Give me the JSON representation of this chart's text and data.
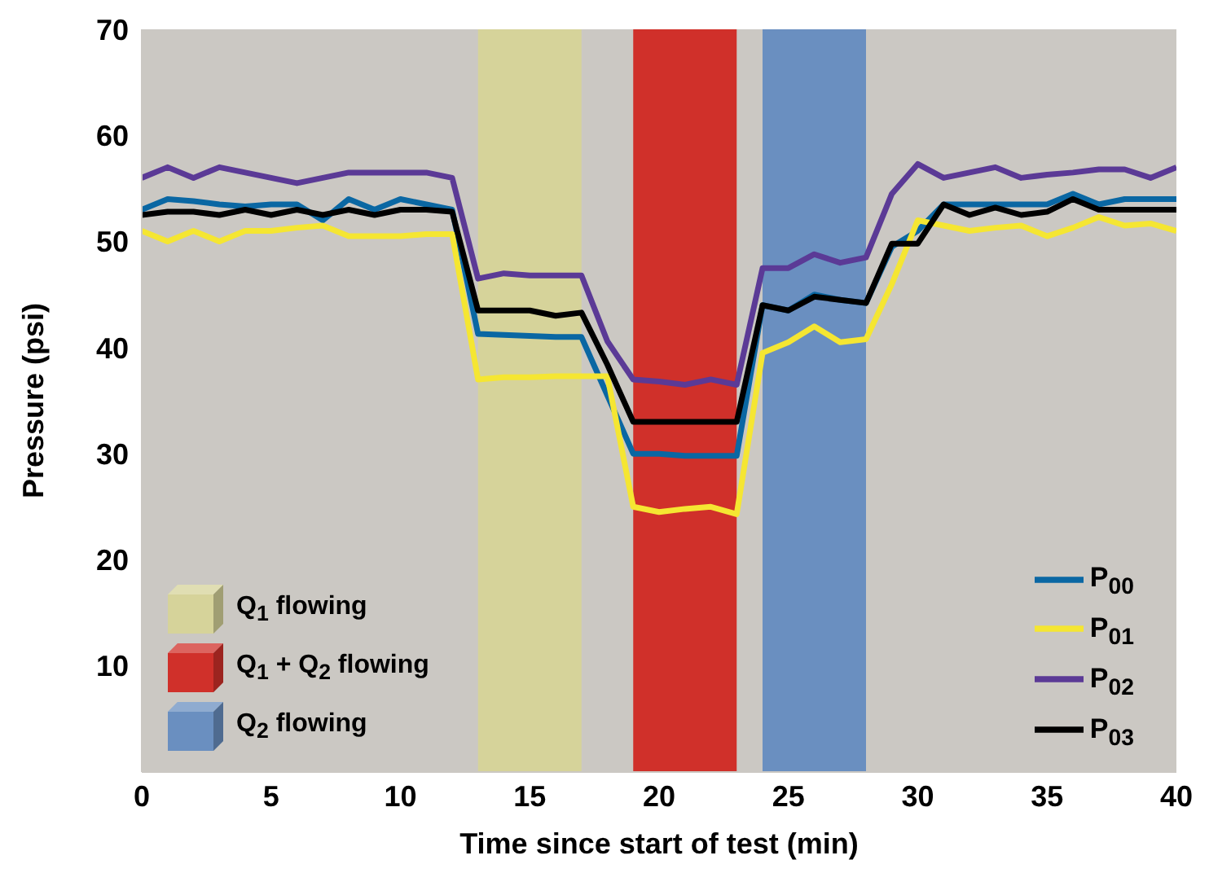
{
  "chart_data": {
    "type": "line",
    "xlabel": "Time since start of test (min)",
    "ylabel": "Pressure (psi)",
    "x": [
      0,
      1,
      2,
      3,
      4,
      5,
      6,
      7,
      8,
      9,
      10,
      11,
      12,
      13,
      14,
      15,
      16,
      17,
      18,
      19,
      20,
      21,
      22,
      23,
      24,
      25,
      26,
      27,
      28,
      29,
      30,
      31,
      32,
      33,
      34,
      35,
      36,
      37,
      38,
      39,
      40
    ],
    "series": [
      {
        "name": "P$_{00}$",
        "color": "#0a67a3",
        "values": [
          53,
          54,
          53.8,
          53.5,
          53.3,
          53.5,
          53.5,
          52,
          54,
          53,
          54,
          53.5,
          53,
          41.3,
          41.2,
          41.1,
          41,
          41,
          35.5,
          30,
          30,
          29.8,
          29.8,
          29.8,
          44,
          43.5,
          45,
          44.5,
          44.2,
          49.5,
          51,
          53.5,
          53.5,
          53.5,
          53.5,
          53.5,
          54.5,
          53.5,
          54,
          54,
          54
        ]
      },
      {
        "name": "P$_{01}$",
        "color": "#f5e632",
        "values": [
          51,
          50,
          51,
          50,
          51,
          51,
          51.3,
          51.5,
          50.5,
          50.5,
          50.5,
          50.7,
          50.7,
          37,
          37.2,
          37.2,
          37.3,
          37.3,
          37.3,
          25,
          24.5,
          24.8,
          25,
          24.3,
          39.5,
          40.5,
          42,
          40.5,
          40.8,
          46,
          52,
          51.5,
          51,
          51.3,
          51.5,
          50.5,
          51.3,
          52.3,
          51.5,
          51.7,
          51
        ]
      },
      {
        "name": "P$_{02}$",
        "color": "#5b3a96",
        "values": [
          56,
          57,
          56,
          57,
          56.5,
          56,
          55.5,
          56,
          56.5,
          56.5,
          56.5,
          56.5,
          56,
          46.5,
          47,
          46.8,
          46.8,
          46.8,
          40.6,
          37,
          36.8,
          36.5,
          37,
          36.5,
          47.5,
          47.5,
          48.8,
          48,
          48.5,
          54.5,
          57.3,
          56,
          56.5,
          57,
          56,
          56.3,
          56.5,
          56.8,
          56.8,
          56,
          57
        ]
      },
      {
        "name": "P$_{03}$",
        "color": "#000000",
        "values": [
          52.5,
          52.8,
          52.8,
          52.5,
          53,
          52.5,
          53,
          52.5,
          53,
          52.5,
          53,
          53,
          52.8,
          43.5,
          43.5,
          43.5,
          43,
          43.3,
          38.4,
          33,
          33,
          33,
          33,
          33,
          44,
          43.5,
          44.8,
          44.5,
          44.2,
          49.8,
          49.8,
          53.5,
          52.5,
          53.2,
          52.5,
          52.8,
          54,
          53,
          53,
          53,
          53
        ]
      }
    ],
    "bands": [
      {
        "axis": "x",
        "from": 13,
        "to": 17,
        "color": "#d6d39a"
      },
      {
        "axis": "x",
        "from": 19,
        "to": 23,
        "color": "#d0302a"
      },
      {
        "axis": "x",
        "from": 24,
        "to": 28,
        "color": "#6a8fc0"
      }
    ],
    "annotations": [
      "Q$_{1}$ flowing",
      "Q$_{1}$ + Q$_{2}$ flowing",
      "Q$_{2}$ flowing"
    ],
    "xlim": [
      0,
      40
    ],
    "xticks": [
      0,
      5,
      10,
      15,
      20,
      25,
      30,
      35,
      40
    ],
    "ylim": [
      0,
      70
    ],
    "yticks": [
      10,
      20,
      30,
      40,
      50,
      60,
      70
    ],
    "legend": "bottom right",
    "line_style": "solid",
    "marker": "none"
  }
}
